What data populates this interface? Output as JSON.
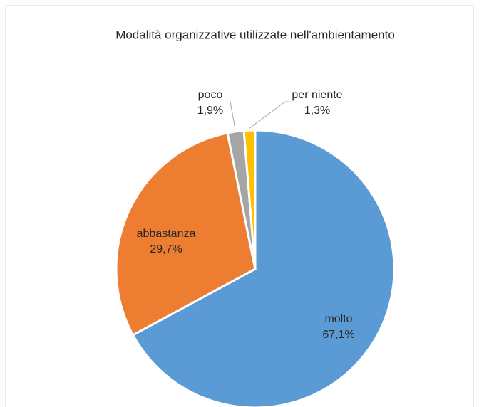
{
  "chart_data": {
    "type": "pie",
    "title": "Modalità organizzative utilizzate nell'ambientamento",
    "categories": [
      "molto",
      "abbastanza",
      "poco",
      "per niente"
    ],
    "values": [
      67.1,
      29.7,
      1.9,
      1.3
    ],
    "value_labels": [
      "67,1%",
      "29,7%",
      "1,9%",
      "1,3%"
    ],
    "colors": [
      "#5b9bd5",
      "#ed7d31",
      "#a5a5a5",
      "#ffc000"
    ]
  }
}
